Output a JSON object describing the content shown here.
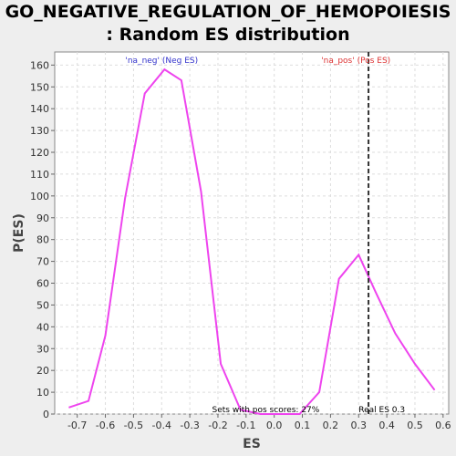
{
  "chart_data": {
    "type": "line",
    "title_line1": "GO_NEGATIVE_REGULATION_OF_HEMOPOIESIS",
    "title_line2": ": Random ES distribution",
    "xlabel": "ES",
    "ylabel": "P(ES)",
    "xlim": [
      -0.78,
      0.62
    ],
    "ylim": [
      0,
      166
    ],
    "xticks": [
      -0.7,
      -0.6,
      -0.5,
      -0.4,
      -0.3,
      -0.2,
      -0.1,
      0.0,
      0.1,
      0.2,
      0.3,
      0.4,
      0.5,
      0.6
    ],
    "xtick_labels": [
      "-0.7",
      "-0.6",
      "-0.5",
      "-0.4",
      "-0.3",
      "-0.2",
      "-0.1",
      "0.0",
      "0.1",
      "0.2",
      "0.3",
      "0.4",
      "0.5",
      "0.6"
    ],
    "yticks": [
      0,
      10,
      20,
      30,
      40,
      50,
      60,
      70,
      80,
      90,
      100,
      110,
      120,
      130,
      140,
      150,
      160
    ],
    "grid": true,
    "series": [
      {
        "color": "#ee44ee",
        "x": [
          -0.73,
          -0.66,
          -0.6,
          -0.53,
          -0.46,
          -0.39,
          -0.33,
          -0.26,
          -0.19,
          -0.12,
          -0.05,
          0.02,
          0.09,
          0.16,
          0.23,
          0.3,
          0.36,
          0.43,
          0.5,
          0.57
        ],
        "y": [
          3,
          6,
          36,
          99,
          147,
          158,
          153,
          102,
          23,
          2,
          0,
          0,
          0,
          10,
          62,
          73,
          56,
          37,
          23,
          11
        ]
      }
    ],
    "vline": {
      "x": 0.335,
      "style": "dashed",
      "color": "#333333"
    },
    "annotations": {
      "neg_label": {
        "text": "'na_neg' (Neg ES)",
        "color": "#3333cc"
      },
      "pos_label": {
        "text": "'na_pos' (Pos ES)",
        "color": "#dd3333"
      },
      "pos_scores": {
        "text": "Sets with pos scores: 27%",
        "color": "#000000"
      },
      "real_es": {
        "text": "Real ES 0.3",
        "color": "#000000"
      }
    },
    "colors": {
      "plot_background": "#ffffff",
      "page_background": "#eeeeee",
      "grid": "#dddddd"
    }
  }
}
